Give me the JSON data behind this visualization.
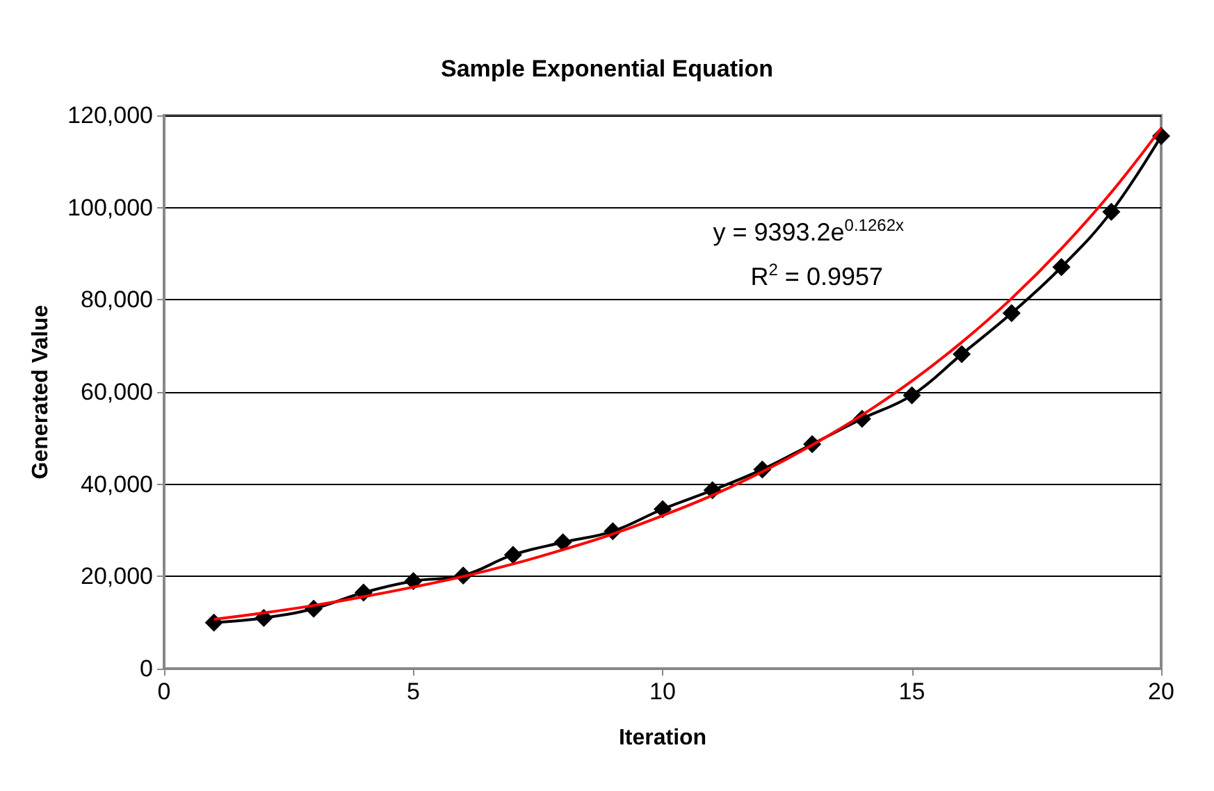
{
  "chart_data": {
    "type": "line",
    "title": "Sample Exponential Equation",
    "xlabel": "Iteration",
    "ylabel": "Generated Value",
    "x": [
      1,
      2,
      3,
      4,
      5,
      6,
      7,
      8,
      9,
      10,
      11,
      12,
      13,
      14,
      15,
      16,
      17,
      18,
      19,
      20
    ],
    "series": [
      {
        "color": "#000000",
        "marker": "diamond",
        "values": [
          10000,
          11000,
          13000,
          16500,
          19000,
          20200,
          24700,
          27400,
          29800,
          34600,
          38700,
          43200,
          48700,
          54200,
          59300,
          68200,
          77100,
          87100,
          99100,
          115500
        ]
      },
      {
        "color": "#ff0000",
        "marker": "none",
        "values": [
          10700,
          12100,
          13700,
          15600,
          17700,
          20000,
          22700,
          25800,
          29200,
          33200,
          37600,
          42700,
          48500,
          55000,
          62400,
          70800,
          80300,
          91100,
          103300,
          117200
        ]
      }
    ],
    "xlim": [
      0,
      20
    ],
    "xticks": [
      0,
      5,
      10,
      15,
      20
    ],
    "ylim": [
      0,
      120000
    ],
    "yticks": [
      0,
      {
        "value": 20000,
        "label": "20,000"
      },
      {
        "value": 40000,
        "label": "40,000"
      },
      {
        "value": 60000,
        "label": "60,000"
      },
      {
        "value": 80000,
        "label": "80,000"
      },
      {
        "value": 100000,
        "label": "100,000"
      },
      {
        "value": 120000,
        "label": "120,000"
      }
    ],
    "grid": "y",
    "annotations": [
      "y = 9393.2e$^{0.1262x}$",
      "R$^{2}$ = 0.9957"
    ]
  }
}
